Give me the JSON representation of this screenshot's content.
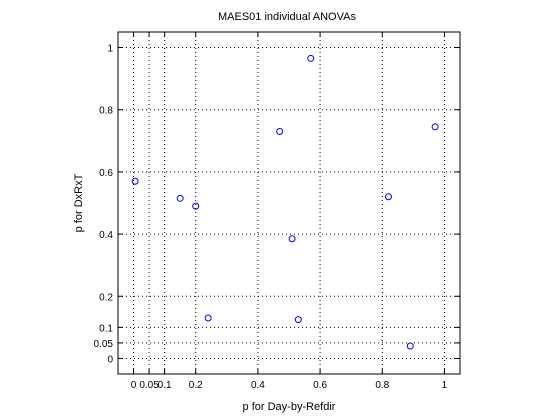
{
  "chart_data": {
    "type": "scatter",
    "title": "MAES01 individual ANOVAs",
    "xlabel": "p for Day-by-Refdir",
    "ylabel": "p for DxRxT",
    "xlim": [
      -0.05,
      1.05
    ],
    "ylim": [
      -0.05,
      1.05
    ],
    "x_ticks": [
      0,
      0.05,
      0.1,
      0.2,
      0.4,
      0.6,
      0.8,
      1
    ],
    "x_tick_labels": [
      "0",
      "0.05",
      "0.1",
      "0.2",
      "0.4",
      "0.6",
      "0.8",
      "1"
    ],
    "y_ticks": [
      0,
      0.05,
      0.1,
      0.2,
      0.4,
      0.6,
      0.8,
      1
    ],
    "y_tick_labels": [
      "0",
      "0.05",
      "0.1",
      "0.2",
      "0.4",
      "0.6",
      "0.8",
      "1"
    ],
    "grid": true,
    "marker": "open circle",
    "marker_color": "#0000ff",
    "series": [
      {
        "x": [
          0.005,
          0.15,
          0.2,
          0.24,
          0.47,
          0.51,
          0.53,
          0.57,
          0.82,
          0.89,
          0.97
        ],
        "y": [
          0.57,
          0.515,
          0.49,
          0.13,
          0.73,
          0.385,
          0.125,
          0.965,
          0.52,
          0.04,
          0.745
        ]
      }
    ]
  }
}
